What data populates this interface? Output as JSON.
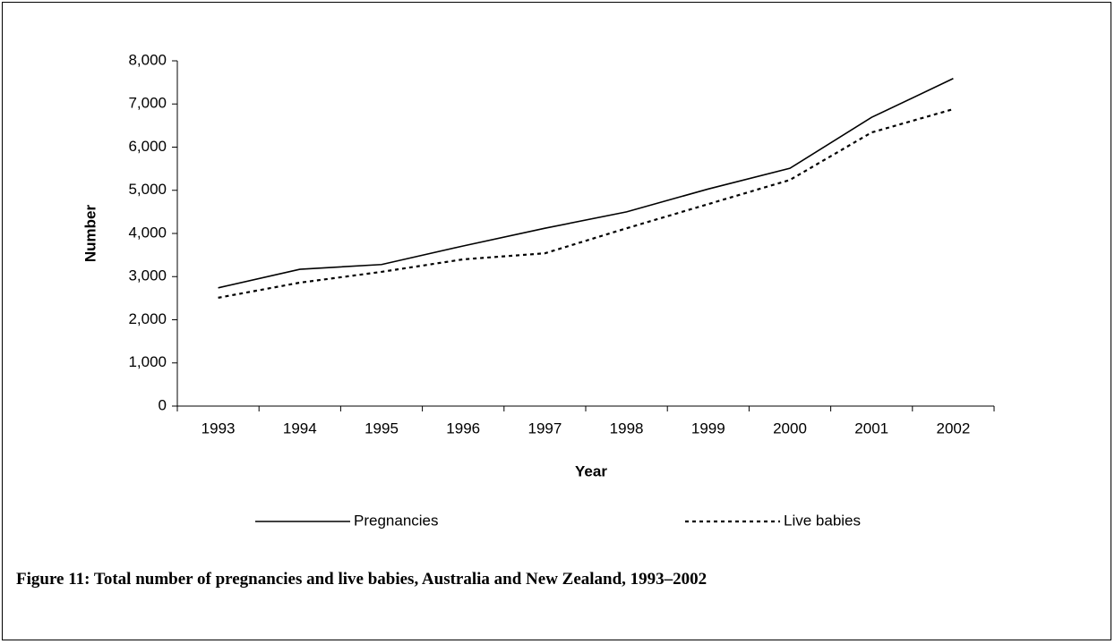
{
  "chart_data": {
    "type": "line",
    "caption": "Figure 11: Total number of pregnancies and live babies, Australia and New Zealand, 1993–2002",
    "x_label": "Year",
    "y_label": "Number",
    "categories": [
      "1993",
      "1994",
      "1995",
      "1996",
      "1997",
      "1998",
      "1999",
      "2000",
      "2001",
      "2002"
    ],
    "series": [
      {
        "name": "Pregnancies",
        "color": "#000000",
        "line_style": "solid",
        "values": [
          2740,
          3170,
          3280,
          3710,
          4120,
          4500,
          5030,
          5510,
          6690,
          7590
        ]
      },
      {
        "name": "Live babies",
        "color": "#000000",
        "line_style": "dotted",
        "values": [
          2510,
          2860,
          3110,
          3400,
          3540,
          4120,
          4680,
          5240,
          6340,
          6880
        ]
      }
    ],
    "ylim": [
      0,
      8000
    ],
    "yticks": [
      0,
      {
        "value": 1000,
        "label": "1,000"
      },
      {
        "value": 2000,
        "label": "2,000"
      },
      {
        "value": 3000,
        "label": "3,000"
      },
      {
        "value": 4000,
        "label": "4,000"
      },
      {
        "value": 5000,
        "label": "5,000"
      },
      {
        "value": 6000,
        "label": "6,000"
      },
      {
        "value": 7000,
        "label": "7,000"
      },
      {
        "value": 8000,
        "label": "8,000"
      }
    ],
    "grid": false,
    "legend": "bottom"
  }
}
